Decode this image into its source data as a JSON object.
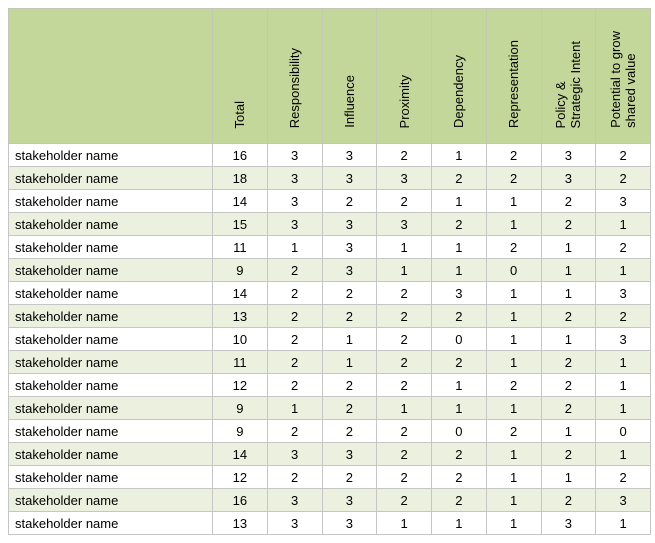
{
  "table": {
    "row_label": "stakeholder name",
    "columns": [
      "Total",
      "Responsibility",
      "Influence",
      "Proximity",
      "Dependency",
      "Representation",
      "Policy &\nStrategic Intent",
      "Potential to grow\nshared value"
    ],
    "rows": [
      [
        16,
        3,
        3,
        2,
        1,
        2,
        3,
        2
      ],
      [
        18,
        3,
        3,
        3,
        2,
        2,
        3,
        2
      ],
      [
        14,
        3,
        2,
        2,
        1,
        1,
        2,
        3
      ],
      [
        15,
        3,
        3,
        3,
        2,
        1,
        2,
        1
      ],
      [
        11,
        1,
        3,
        1,
        1,
        2,
        1,
        2
      ],
      [
        9,
        2,
        3,
        1,
        1,
        0,
        1,
        1
      ],
      [
        14,
        2,
        2,
        2,
        3,
        1,
        1,
        3
      ],
      [
        13,
        2,
        2,
        2,
        2,
        1,
        2,
        2
      ],
      [
        10,
        2,
        1,
        2,
        0,
        1,
        1,
        3
      ],
      [
        11,
        2,
        1,
        2,
        2,
        1,
        2,
        1
      ],
      [
        12,
        2,
        2,
        2,
        1,
        2,
        2,
        1
      ],
      [
        9,
        1,
        2,
        1,
        1,
        1,
        2,
        1
      ],
      [
        9,
        2,
        2,
        2,
        0,
        2,
        1,
        0
      ],
      [
        14,
        3,
        3,
        2,
        2,
        1,
        2,
        1
      ],
      [
        12,
        2,
        2,
        2,
        2,
        1,
        1,
        2
      ],
      [
        16,
        3,
        3,
        2,
        2,
        1,
        2,
        3
      ],
      [
        13,
        3,
        3,
        1,
        1,
        1,
        3,
        1
      ]
    ],
    "colors": {
      "header_bg": "#c4d79b",
      "band_bg": "#ebf1de",
      "gridline": "#c6c6c6"
    }
  }
}
